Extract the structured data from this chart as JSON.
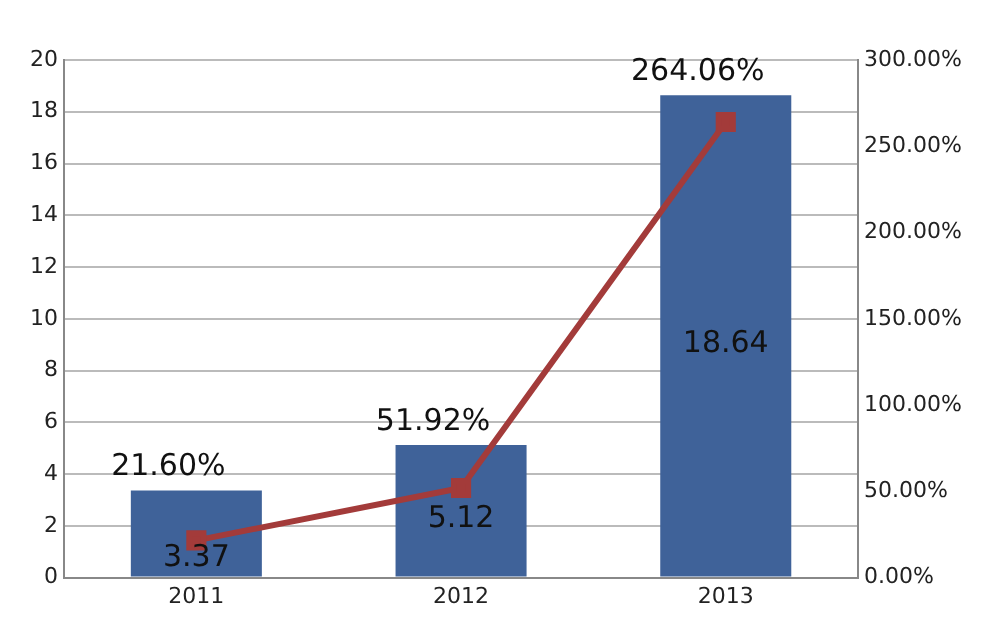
{
  "chart_data": {
    "type": "bar",
    "categories": [
      "2011",
      "2012",
      "2013"
    ],
    "series": [
      {
        "color": "#3f6299",
        "values": [
          3.37,
          5.12,
          18.64
        ],
        "value_labels": [
          "3.37",
          "5.12",
          "18.64"
        ]
      },
      {
        "type": "line",
        "axis": "y2",
        "color": "#a33b3a",
        "values": [
          21.6,
          51.92,
          264.06
        ],
        "value_labels": [
          "21.60%",
          "51.92%",
          "264.06%"
        ],
        "marker": "square"
      }
    ],
    "ylim": [
      0,
      20
    ],
    "yticks": [
      0,
      2,
      4,
      6,
      8,
      10,
      12,
      14,
      16,
      18,
      20
    ],
    "y2lim": [
      0,
      300
    ],
    "y2ticks": [
      {
        "value": 0,
        "label": "0.00%"
      },
      {
        "value": 50,
        "label": "50.00%"
      },
      {
        "value": 100,
        "label": "100.00%"
      },
      {
        "value": 150,
        "label": "150.00%"
      },
      {
        "value": 200,
        "label": "200.00%"
      },
      {
        "value": 250,
        "label": "250.00%"
      },
      {
        "value": 300,
        "label": "300.00%"
      }
    ],
    "grid": "y",
    "legend": false
  }
}
